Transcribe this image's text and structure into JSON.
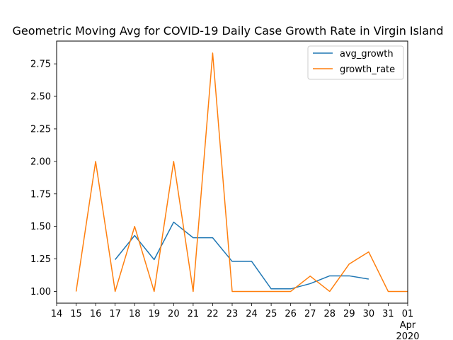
{
  "chart_data": {
    "type": "line",
    "title": "Geometric Moving Avg for COVID-19 Daily Case Growth Rate in Virgin Island",
    "x_ticks": [
      "14",
      "15",
      "16",
      "17",
      "18",
      "19",
      "20",
      "21",
      "22",
      "23",
      "24",
      "25",
      "26",
      "27",
      "28",
      "29",
      "30",
      "31",
      "01"
    ],
    "x_tick_sublabel": [
      "Apr",
      "2020"
    ],
    "x": [
      "2020-03-14",
      "2020-03-15",
      "2020-03-16",
      "2020-03-17",
      "2020-03-18",
      "2020-03-19",
      "2020-03-20",
      "2020-03-21",
      "2020-03-22",
      "2020-03-23",
      "2020-03-24",
      "2020-03-25",
      "2020-03-26",
      "2020-03-27",
      "2020-03-28",
      "2020-03-29",
      "2020-03-30",
      "2020-03-31",
      "2020-04-01"
    ],
    "xlim": [
      "2020-03-14",
      "2020-04-01"
    ],
    "ylim": [
      0.91,
      2.925
    ],
    "y_ticks": [
      "1.00",
      "1.25",
      "1.50",
      "1.75",
      "2.00",
      "2.25",
      "2.50",
      "2.75"
    ],
    "y_tick_values": [
      1.0,
      1.25,
      1.5,
      1.75,
      2.0,
      2.25,
      2.5,
      2.75
    ],
    "legend_position": "top-right",
    "series": [
      {
        "name": "avg_growth",
        "color": "#1f77b4",
        "values": [
          null,
          null,
          null,
          1.245,
          1.43,
          1.245,
          1.533,
          1.413,
          1.413,
          1.231,
          1.231,
          1.02,
          1.02,
          1.06,
          1.12,
          1.12,
          1.095,
          null,
          null
        ]
      },
      {
        "name": "growth_rate",
        "color": "#ff7f0e",
        "values": [
          null,
          1.0,
          2.0,
          1.0,
          1.5,
          1.0,
          2.0,
          1.0,
          2.833,
          1.0,
          1.0,
          1.0,
          1.0,
          1.118,
          1.0,
          1.211,
          1.304,
          1.0,
          1.0
        ]
      }
    ]
  }
}
